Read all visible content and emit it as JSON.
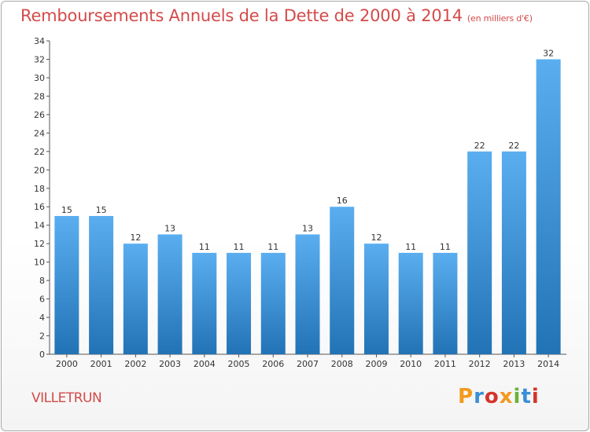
{
  "header": {
    "title": "Remboursements Annuels de la Dette de 2000 à 2014",
    "subtitle": "(en milliers d'€)"
  },
  "footer": {
    "commune": "VILLETRUN",
    "logo_text": "Proxiti"
  },
  "colors": {
    "bar_top": "#5aaef0",
    "bar_bottom": "#2273b5",
    "title": "#d44a4a",
    "logo": [
      "#f39a1e",
      "#3a8fd6",
      "#d4342a",
      "#f39a1e",
      "#6bb33a",
      "#3a8fd6",
      "#d4342a"
    ]
  },
  "chart_data": {
    "type": "bar",
    "title": "Remboursements Annuels de la Dette de 2000 à 2014",
    "unit": "en milliers d'€",
    "categories": [
      "2000",
      "2001",
      "2002",
      "2003",
      "2004",
      "2005",
      "2006",
      "2007",
      "2008",
      "2009",
      "2010",
      "2011",
      "2012",
      "2013",
      "2014"
    ],
    "values": [
      15,
      15,
      12,
      13,
      11,
      11,
      11,
      13,
      16,
      12,
      11,
      11,
      22,
      22,
      32
    ],
    "ylim": [
      0,
      34
    ],
    "yticks": [
      0,
      2,
      4,
      6,
      8,
      10,
      12,
      14,
      16,
      18,
      20,
      22,
      24,
      26,
      28,
      30,
      32,
      34
    ],
    "xlabel": "",
    "ylabel": "",
    "grid": false
  }
}
